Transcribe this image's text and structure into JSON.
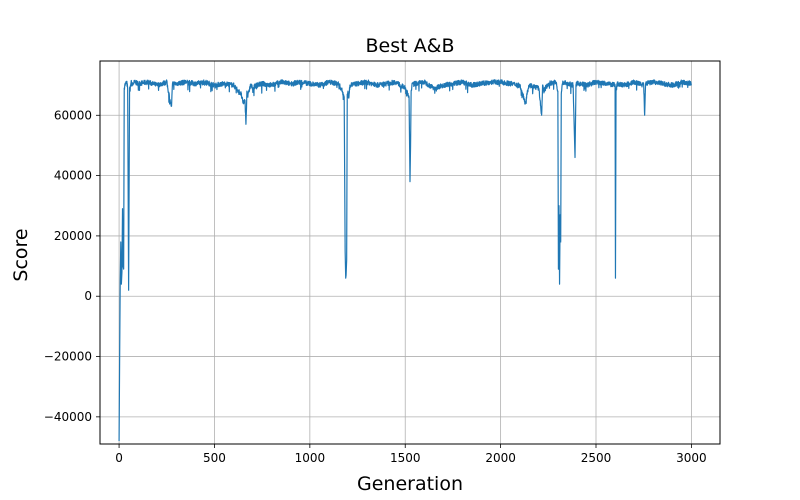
{
  "chart_data": {
    "type": "line",
    "title": "Best A&B",
    "xlabel": "Generation",
    "ylabel": "Score",
    "xlim": [
      -100,
      3150
    ],
    "ylim": [
      -49000,
      78000
    ],
    "xticks": [
      0,
      500,
      1000,
      1500,
      2000,
      2500,
      3000
    ],
    "yticks": [
      -40000,
      -20000,
      0,
      20000,
      40000,
      60000
    ],
    "xtick_labels": [
      "0",
      "500",
      "1000",
      "1500",
      "2000",
      "2500",
      "3000"
    ],
    "ytick_labels": [
      "−40000",
      "−20000",
      "0",
      "20000",
      "40000",
      "60000"
    ],
    "grid": true,
    "line_color": "#1f77b4",
    "x_range": [
      0,
      3000
    ],
    "baseline": 70500,
    "series": [
      {
        "x": [
          0,
          3,
          6,
          9,
          12,
          15,
          18,
          21,
          24,
          27,
          30,
          35,
          40,
          45,
          48,
          50,
          55,
          58,
          60,
          63,
          66,
          70,
          80,
          100,
          150,
          200,
          250,
          270,
          275,
          280,
          300,
          350,
          400,
          450,
          500,
          550,
          600,
          640,
          650,
          660,
          665,
          670,
          675,
          680,
          690,
          700,
          720,
          750,
          800,
          850,
          900,
          950,
          1000,
          1050,
          1100,
          1150,
          1170,
          1180,
          1185,
          1188,
          1190,
          1193,
          1196,
          1200,
          1205,
          1210,
          1250,
          1300,
          1350,
          1400,
          1450,
          1500,
          1520,
          1525,
          1528,
          1531,
          1535,
          1550,
          1600,
          1650,
          1700,
          1750,
          1800,
          1850,
          1900,
          1950,
          2000,
          2050,
          2100,
          2130,
          2140,
          2150,
          2200,
          2215,
          2220,
          2225,
          2250,
          2290,
          2300,
          2303,
          2306,
          2309,
          2312,
          2315,
          2318,
          2321,
          2324,
          2330,
          2350,
          2380,
          2390,
          2395,
          2400,
          2410,
          2450,
          2500,
          2550,
          2600,
          2602,
          2605,
          2610,
          2650,
          2700,
          2750,
          2755,
          2760,
          2800,
          2850,
          2900,
          2950,
          3000
        ],
        "y": [
          -48000,
          -20000,
          5000,
          18000,
          4000,
          8000,
          29000,
          10000,
          9000,
          69000,
          70000,
          70500,
          71000,
          69000,
          30000,
          2000,
          69000,
          68000,
          70000,
          71000,
          70500,
          70000,
          71000,
          70500,
          71000,
          70000,
          71000,
          64000,
          63000,
          70500,
          70500,
          71000,
          70500,
          71000,
          70000,
          70500,
          70000,
          67000,
          64000,
          65000,
          57000,
          68000,
          66000,
          68000,
          70000,
          69000,
          70000,
          70500,
          70000,
          71000,
          70500,
          71000,
          70500,
          70000,
          71000,
          70500,
          68000,
          66000,
          15000,
          6000,
          7000,
          12000,
          67000,
          68000,
          66000,
          70000,
          70500,
          71000,
          70000,
          70500,
          71000,
          69000,
          66000,
          38000,
          50000,
          68000,
          70000,
          70500,
          71000,
          69000,
          70000,
          70500,
          71000,
          70000,
          70500,
          71000,
          71000,
          70500,
          70000,
          64000,
          68000,
          70000,
          69000,
          60000,
          70000,
          68000,
          70500,
          71000,
          68000,
          9000,
          30000,
          4000,
          27000,
          18000,
          67000,
          69000,
          70500,
          71000,
          70500,
          70000,
          46000,
          70000,
          70500,
          70500,
          70000,
          71000,
          70500,
          70000,
          6000,
          68000,
          70500,
          70000,
          71000,
          70000,
          60000,
          70500,
          71000,
          70500,
          70000,
          71000,
          70500
        ]
      }
    ]
  }
}
